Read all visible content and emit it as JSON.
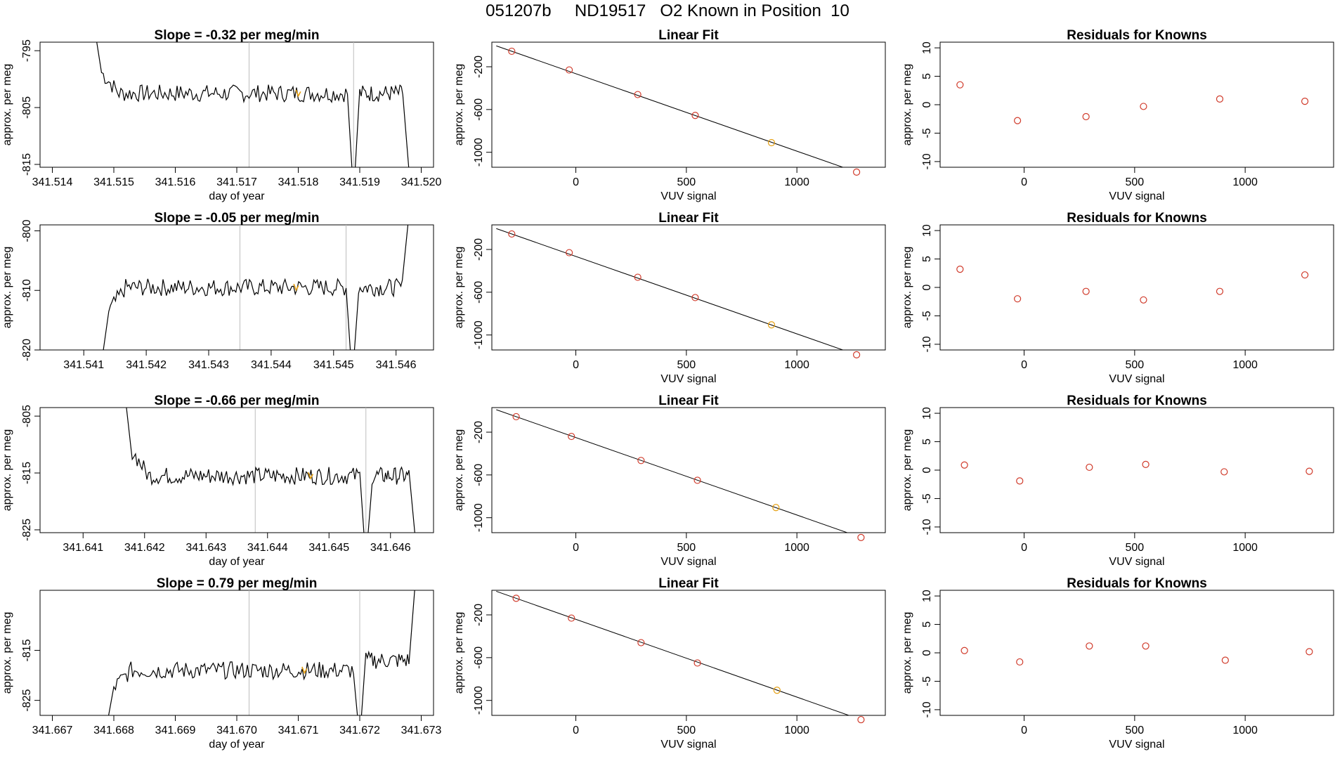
{
  "page_title": "051207b     ND19517   O2 Known in Position  10",
  "colors": {
    "trace": "#000000",
    "highlight": "#e6a012",
    "points": "#d03a2a",
    "vline": "#bdbdbd"
  },
  "chart_data": [
    {
      "type": "line",
      "row": 1,
      "title": "Slope =  -0.32  per meg/min",
      "xlabel": "day of year",
      "ylabel": "approx. per meg",
      "xlim": [
        341.5138,
        341.5202
      ],
      "ylim": [
        -815.5,
        -793.5
      ],
      "xticks": [
        "341.514",
        "341.515",
        "341.516",
        "341.517",
        "341.518",
        "341.519",
        "341.520"
      ],
      "yticks": [
        "-795",
        "-805",
        "-815"
      ],
      "ytick_values": [
        -795,
        -805,
        -815
      ],
      "vlines": [
        341.5172,
        341.5189
      ],
      "seg1": {
        "x0": 341.5148,
        "x1": 341.5188,
        "level": -802.5
      },
      "seg2": {
        "x0": 341.519,
        "x1": 341.5197,
        "level": -802.5
      },
      "start_value": -792,
      "end_value": -816,
      "highlight_x": 341.518
    },
    {
      "type": "line",
      "row": 2,
      "title": "Slope =  -0.05  per meg/min",
      "xlabel": "",
      "ylabel": "approx. per meg",
      "xlim": [
        341.5403,
        341.5466
      ],
      "ylim": [
        -820,
        -799
      ],
      "xticks": [
        "341.541",
        "341.542",
        "341.543",
        "341.544",
        "341.545",
        "341.546"
      ],
      "yticks": [
        "-800",
        "-810",
        "-820"
      ],
      "ytick_values": [
        -800,
        -810,
        -820
      ],
      "vlines": [
        341.5435,
        341.5452
      ],
      "seg1": {
        "x0": 341.5414,
        "x1": 341.5452,
        "level": -809.5
      },
      "seg2": {
        "x0": 341.5454,
        "x1": 341.5461,
        "level": -809.5
      },
      "start_value": -821,
      "end_value": -798,
      "highlight_x": 341.5444
    },
    {
      "type": "line",
      "row": 3,
      "title": "Slope =  -0.66  per meg/min",
      "xlabel": "day of year",
      "ylabel": "approx. per meg",
      "xlim": [
        341.6403,
        341.6467
      ],
      "ylim": [
        -825.5,
        -803.5
      ],
      "xticks": [
        "341.641",
        "341.642",
        "341.643",
        "341.644",
        "341.645",
        "341.646"
      ],
      "yticks": [
        "-805",
        "-815",
        "-825"
      ],
      "ytick_values": [
        -805,
        -815,
        -825
      ],
      "vlines": [
        341.6438,
        341.6456
      ],
      "seg1": {
        "x0": 341.6418,
        "x1": 341.6455,
        "level": -815.5
      },
      "seg2": {
        "x0": 341.6457,
        "x1": 341.6463,
        "level": -815.5
      },
      "start_value": -803,
      "end_value": -826,
      "highlight_x": 341.6447
    },
    {
      "type": "line",
      "row": 4,
      "title": "Slope =  0.79  per meg/min",
      "xlabel": "day of year",
      "ylabel": "approx. per meg",
      "xlim": [
        341.6668,
        341.6732
      ],
      "ylim": [
        -828,
        -803
      ],
      "xticks": [
        "341.667",
        "341.668",
        "341.669",
        "341.670",
        "341.671",
        "341.672",
        "341.673"
      ],
      "yticks": [
        "-815",
        "-825"
      ],
      "ytick_values": [
        -815,
        -825
      ],
      "vlines": [
        341.6702,
        341.672
      ],
      "seg1": {
        "x0": 341.668,
        "x1": 341.6719,
        "level": -819
      },
      "seg2": {
        "x0": 341.6721,
        "x1": 341.6728,
        "level": -817
      },
      "start_value": -829,
      "end_value": -802,
      "highlight_x": 341.6711
    },
    {
      "type": "scatter",
      "row": 1,
      "title": "Linear Fit",
      "xlabel": "VUV signal",
      "ylabel": "approx. per meg",
      "xlim": [
        -380,
        1400
      ],
      "ylim": [
        -1140,
        30
      ],
      "xticks": [
        "0",
        "500",
        "1000"
      ],
      "xtick_values": [
        0,
        500,
        1000
      ],
      "yticks": [
        "-200",
        "-600",
        "-1000"
      ],
      "ytick_values": [
        -200,
        -600,
        -1000
      ],
      "x": [
        -290,
        -30,
        280,
        540,
        885,
        1270
      ],
      "y": [
        -55,
        -230,
        -460,
        -655,
        -910,
        -1185
      ],
      "highlight_index": 4
    },
    {
      "type": "scatter",
      "row": 2,
      "title": "Linear Fit",
      "xlabel": "VUV signal",
      "ylabel": "approx. per meg",
      "xlim": [
        -380,
        1400
      ],
      "ylim": [
        -1140,
        30
      ],
      "xticks": [
        "0",
        "500",
        "1000"
      ],
      "xtick_values": [
        0,
        500,
        1000
      ],
      "yticks": [
        "-200",
        "-600",
        "-1000"
      ],
      "ytick_values": [
        -200,
        -600,
        -1000
      ],
      "x": [
        -290,
        -30,
        280,
        540,
        885,
        1270
      ],
      "y": [
        -55,
        -230,
        -460,
        -650,
        -905,
        -1185
      ],
      "highlight_index": 4
    },
    {
      "type": "scatter",
      "row": 3,
      "title": "Linear Fit",
      "xlabel": "VUV signal",
      "ylabel": "approx. per meg",
      "xlim": [
        -380,
        1400
      ],
      "ylim": [
        -1140,
        30
      ],
      "xticks": [
        "0",
        "500",
        "1000"
      ],
      "xtick_values": [
        0,
        500,
        1000
      ],
      "yticks": [
        "-200",
        "-600",
        "-1000"
      ],
      "ytick_values": [
        -200,
        -600,
        -1000
      ],
      "x": [
        -270,
        -20,
        295,
        550,
        905,
        1290
      ],
      "y": [
        -55,
        -240,
        -465,
        -650,
        -905,
        -1185
      ],
      "highlight_index": 4
    },
    {
      "type": "scatter",
      "row": 4,
      "title": "Linear Fit",
      "xlabel": "VUV signal",
      "ylabel": "approx. per meg",
      "xlim": [
        -380,
        1400
      ],
      "ylim": [
        -1140,
        30
      ],
      "xticks": [
        "0",
        "500",
        "1000"
      ],
      "xtick_values": [
        0,
        500,
        1000
      ],
      "yticks": [
        "-200",
        "-600",
        "-1000"
      ],
      "ytick_values": [
        -200,
        -600,
        -1000
      ],
      "x": [
        -270,
        -20,
        295,
        550,
        910,
        1290
      ],
      "y": [
        -45,
        -230,
        -460,
        -650,
        -905,
        -1180
      ],
      "highlight_index": 4
    },
    {
      "type": "scatter",
      "row": 1,
      "title": "Residuals for Knowns",
      "xlabel": "VUV signal",
      "ylabel": "approx. per meg",
      "xlim": [
        -380,
        1400
      ],
      "ylim": [
        -11,
        11
      ],
      "xticks": [
        "0",
        "500",
        "1000"
      ],
      "xtick_values": [
        0,
        500,
        1000
      ],
      "yticks": [
        "10",
        "5",
        "0",
        "-5",
        "-10"
      ],
      "ytick_values": [
        10,
        5,
        0,
        -5,
        -10
      ],
      "x": [
        -290,
        -30,
        280,
        540,
        885,
        1270
      ],
      "y": [
        3.5,
        -2.8,
        -2.1,
        -0.3,
        1.0,
        0.6
      ]
    },
    {
      "type": "scatter",
      "row": 2,
      "title": "Residuals for Knowns",
      "xlabel": "VUV signal",
      "ylabel": "approx. per meg",
      "xlim": [
        -380,
        1400
      ],
      "ylim": [
        -11,
        11
      ],
      "xticks": [
        "0",
        "500",
        "1000"
      ],
      "xtick_values": [
        0,
        500,
        1000
      ],
      "yticks": [
        "10",
        "5",
        "0",
        "-5",
        "-10"
      ],
      "ytick_values": [
        10,
        5,
        0,
        -5,
        -10
      ],
      "x": [
        -290,
        -30,
        280,
        540,
        885,
        1270
      ],
      "y": [
        3.2,
        -2.0,
        -0.7,
        -2.2,
        -0.7,
        2.2
      ]
    },
    {
      "type": "scatter",
      "row": 3,
      "title": "Residuals for Knowns",
      "xlabel": "VUV signal",
      "ylabel": "approx. per meg",
      "xlim": [
        -380,
        1400
      ],
      "ylim": [
        -11,
        11
      ],
      "xticks": [
        "0",
        "500",
        "1000"
      ],
      "xtick_values": [
        0,
        500,
        1000
      ],
      "yticks": [
        "10",
        "5",
        "0",
        "-5",
        "-10"
      ],
      "ytick_values": [
        10,
        5,
        0,
        -5,
        -10
      ],
      "x": [
        -270,
        -20,
        295,
        550,
        905,
        1290
      ],
      "y": [
        0.9,
        -1.9,
        0.5,
        1.0,
        -0.3,
        -0.2
      ]
    },
    {
      "type": "scatter",
      "row": 4,
      "title": "Residuals for Knowns",
      "xlabel": "VUV signal",
      "ylabel": "approx. per meg",
      "xlim": [
        -380,
        1400
      ],
      "ylim": [
        -11,
        11
      ],
      "xticks": [
        "0",
        "500",
        "1000"
      ],
      "xtick_values": [
        0,
        500,
        1000
      ],
      "yticks": [
        "10",
        "5",
        "0",
        "-5",
        "-10"
      ],
      "ytick_values": [
        10,
        5,
        0,
        -5,
        -10
      ],
      "x": [
        -270,
        -20,
        295,
        550,
        910,
        1290
      ],
      "y": [
        0.4,
        -1.6,
        1.2,
        1.2,
        -1.3,
        0.2
      ]
    }
  ]
}
